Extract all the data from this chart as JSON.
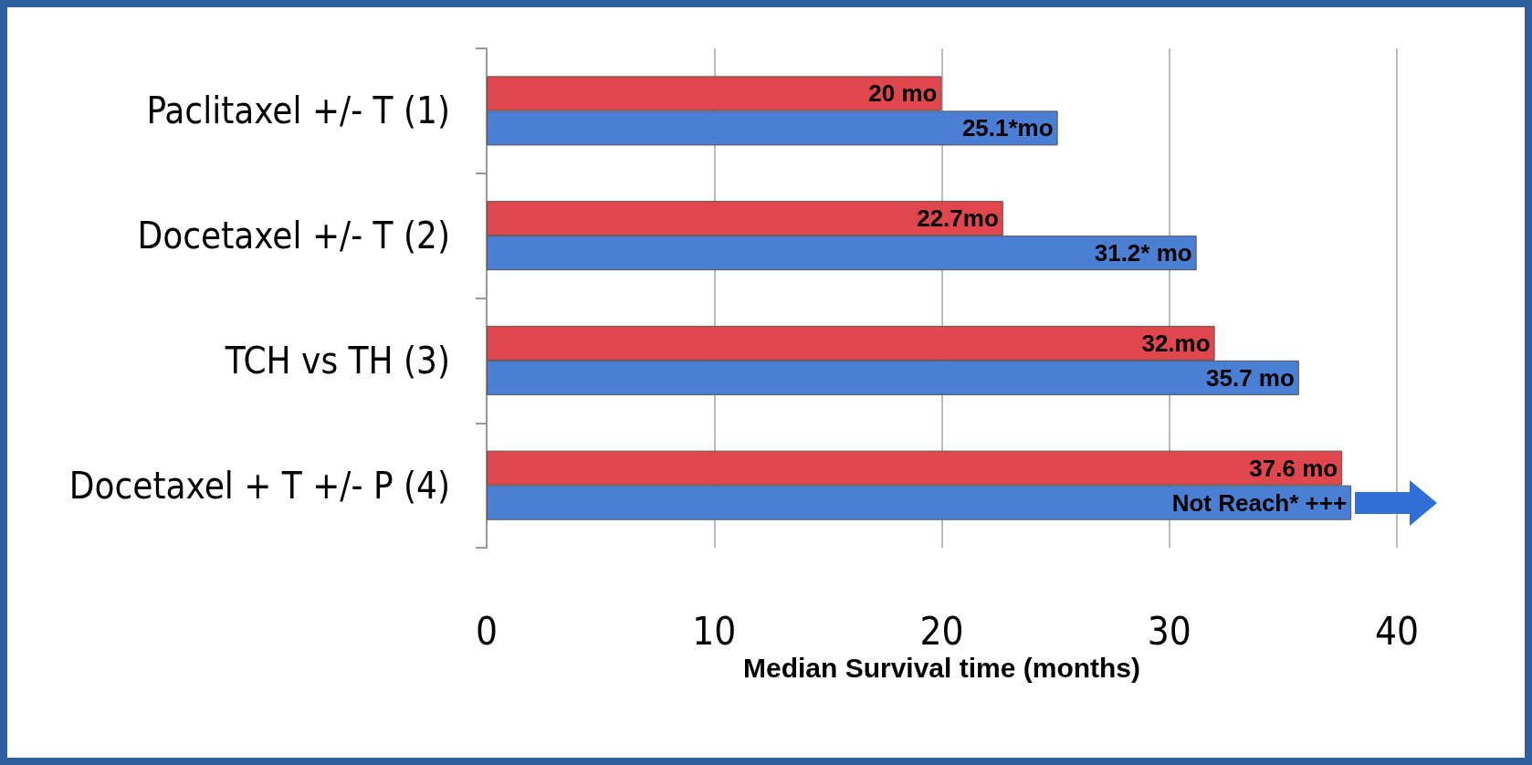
{
  "chart_data": {
    "type": "bar",
    "orientation": "horizontal",
    "xlabel": "Median Survival time (months)",
    "categories": [
      "Paclitaxel +/- T (1)",
      "Docetaxel +/- T (2)",
      "TCH vs TH (3)",
      "Docetaxel + T +/- P (4)"
    ],
    "series": [
      {
        "color": "#e0474c",
        "values": [
          20,
          22.7,
          32,
          37.6
        ],
        "value_labels": [
          "20 mo",
          "22.7mo",
          "32.mo",
          "37.6 mo"
        ]
      },
      {
        "color": "#4a7fd4",
        "values": [
          25.1,
          31.2,
          35.7,
          38
        ],
        "value_labels": [
          "25.1*mo",
          "31.2* mo",
          "35.7 mo",
          "Not Reach* +++"
        ]
      }
    ],
    "xlim": [
      0,
      40
    ],
    "xticks": [
      0,
      10,
      20,
      30,
      40
    ],
    "grid": "x"
  }
}
